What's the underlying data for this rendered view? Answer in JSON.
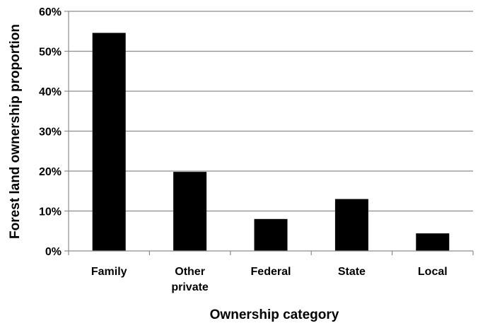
{
  "chart_data": {
    "type": "bar",
    "categories": [
      [
        "Family"
      ],
      [
        "Other",
        "private"
      ],
      [
        "Federal"
      ],
      [
        "State"
      ],
      [
        "Local"
      ]
    ],
    "values": [
      0.546,
      0.198,
      0.08,
      0.13,
      0.044
    ],
    "xlabel": "Ownership category",
    "ylabel": "Forest land ownership proportion",
    "ylim": [
      0,
      0.6
    ],
    "y_ticks": [
      "0%",
      "10%",
      "20%",
      "30%",
      "40%",
      "50%",
      "60%"
    ],
    "grid": true,
    "legend": "none",
    "colors": {
      "bar": "#000000",
      "grid": "#8c8c8c",
      "axis": "#8c8c8c"
    }
  }
}
